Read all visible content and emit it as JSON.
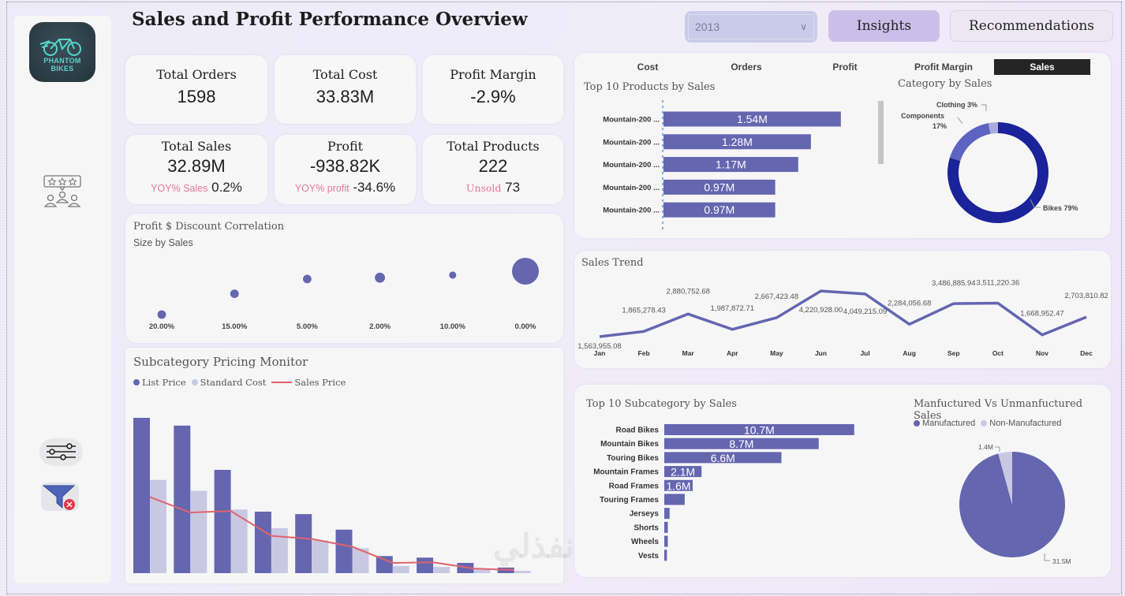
{
  "header": {
    "title": "Sales and Profit Performance Overview",
    "year_filter": "2013",
    "insights_label": "Insights",
    "recommendations_label": "Recommendations"
  },
  "sidebar": {
    "logo_text": [
      "PHANTOM",
      "BIKES"
    ],
    "icons": [
      "logo",
      "rating-people-icon",
      "sliders-icon",
      "clear-filter-icon"
    ]
  },
  "kpis": [
    {
      "label": "Total Orders",
      "value": "1598"
    },
    {
      "label": "Total Cost",
      "value": "33.83M"
    },
    {
      "label": "Profit Margin",
      "value": "-2.9%"
    },
    {
      "label": "Total Sales",
      "value": "32.89M",
      "sub_label": "YOY% Sales",
      "sub_value": "0.2%"
    },
    {
      "label": "Profit",
      "value": "-938.82K",
      "sub_label": "YOY% profit",
      "sub_value": "-34.6%"
    },
    {
      "label": "Total Products",
      "value": "222",
      "sub_label": "Unsold",
      "sub_value": "73"
    }
  ],
  "metric_tabs": [
    {
      "label": "Cost"
    },
    {
      "label": "Orders"
    },
    {
      "label": "Profit"
    },
    {
      "label": "Profit Margin"
    },
    {
      "label": "Sales",
      "active": true
    }
  ],
  "colors": {
    "primary": "#6466b0",
    "light": "#c9c8e3",
    "red_line": "#e0636b",
    "donut_bikes": "#1a239a",
    "donut_components": "#5c63c1",
    "donut_clothing": "#aaaadc",
    "pink": "#e37898"
  },
  "watermark": {
    "text": "نفذلي",
    "url": "nafezly.com"
  },
  "chart_data": [
    {
      "id": "scatter",
      "type": "scatter",
      "title": "Profit $ Discount Correlation",
      "subtitle": "Size by Sales",
      "categories": [
        "20.00%",
        "15.00%",
        "5.00%",
        "2.00%",
        "10.00%",
        "0.00%"
      ],
      "profit_relative": [
        0,
        0.48,
        0.82,
        0.85,
        0.91,
        1.0
      ],
      "size_relative": [
        0.2,
        0.2,
        0.2,
        0.27,
        0.14,
        1.0
      ]
    },
    {
      "id": "pricing",
      "type": "bar",
      "title": "Subcategory Pricing Monitor",
      "legend": [
        "List Price",
        "Standard Cost",
        "Sales Price"
      ],
      "series": [
        {
          "name": "List Price",
          "values": [
            100,
            95,
            66.5,
            39.6,
            38,
            28,
            11,
            10,
            6.6,
            3.6
          ]
        },
        {
          "name": "Standard Cost",
          "values": [
            60,
            53,
            41,
            29,
            21,
            16,
            4.6,
            4,
            2.5,
            1.5
          ]
        },
        {
          "name": "Sales Price",
          "values": [
            49,
            39,
            40,
            24,
            22,
            17,
            6.6,
            7,
            3,
            2
          ]
        }
      ]
    },
    {
      "id": "top_products",
      "type": "bar",
      "orientation": "horizontal",
      "title": "Top 10 Products by Sales",
      "categories": [
        "Mountain-200 ...",
        "Mountain-200 ...",
        "Mountain-200 ...",
        "Mountain-200 ...",
        "Mountain-200 ..."
      ],
      "values": [
        1.54,
        1.28,
        1.17,
        0.97,
        0.97
      ],
      "labels": [
        "1.54M",
        "1.28M",
        "1.17M",
        "0.97M",
        "0.97M"
      ]
    },
    {
      "id": "category",
      "type": "pie",
      "title": "Category by Sales",
      "donut": true,
      "categories": [
        "Bikes",
        "Components",
        "Clothing"
      ],
      "values": [
        79,
        17,
        3
      ],
      "labels": [
        "Bikes 79%",
        "Components",
        "17%",
        "Clothing 3%"
      ]
    },
    {
      "id": "trend",
      "type": "line",
      "title": "Sales Trend",
      "categories": [
        "Jan",
        "Feb",
        "Mar",
        "Apr",
        "May",
        "Jun",
        "Jul",
        "Aug",
        "Sep",
        "Oct",
        "Nov",
        "Dec"
      ],
      "values": [
        1563955.08,
        1865278.43,
        2880752.68,
        1987872.71,
        2667423.48,
        4220928.0,
        4049215.09,
        2284056.68,
        3486885.94,
        3511220.36,
        1668952.47,
        2703810.82
      ],
      "labels": [
        "1,563,955.08",
        "1,865,278.43",
        "2,880,752.68",
        "1,987,872.71",
        "2,667,423.48",
        "4,220,928.00",
        "4,049,215.09",
        "2,284,056.68",
        "3,486,885.94",
        "3,511,220.36",
        "1,668,952.47",
        "2,703,810.82"
      ]
    },
    {
      "id": "subcategory",
      "type": "bar",
      "orientation": "horizontal",
      "title": "Top 10 Subcategory by Sales",
      "categories": [
        "Road Bikes",
        "Mountain Bikes",
        "Touring Bikes",
        "Mountain Frames",
        "Road Frames",
        "Touring Frames",
        "Jerseys",
        "Shorts",
        "Wheels",
        "Vests"
      ],
      "values": [
        10.7,
        8.7,
        6.6,
        2.1,
        1.6,
        1.15,
        0.3,
        0.2,
        0.2,
        0.15
      ],
      "labels": [
        "10.7M",
        "8.7M",
        "6.6M",
        "2.1M",
        "1.6M",
        "",
        "",
        "",
        "",
        ""
      ]
    },
    {
      "id": "manufactured",
      "type": "pie",
      "title": "Manfuctured Vs Unmanfuctured Sales",
      "categories": [
        "Manufactured",
        "Non-Manufactured"
      ],
      "values": [
        31.5,
        1.4
      ],
      "labels": [
        "31.5M",
        "1.4M"
      ]
    }
  ]
}
